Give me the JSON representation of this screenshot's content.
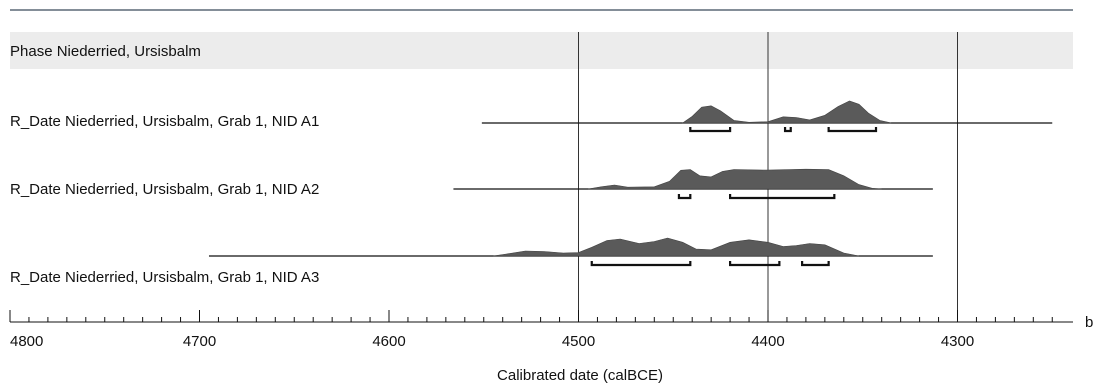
{
  "chart_data": {
    "type": "area",
    "title": "",
    "xlabel": "Calibrated date (calBCE)",
    "ylabel": "",
    "xlim": [
      4800,
      4250
    ],
    "x_ticks": [
      4800,
      4700,
      4600,
      4500,
      4400,
      4300
    ],
    "minor_tick_step": 10,
    "axis_end_label": "b",
    "vertical_gridlines": [
      4500,
      4400,
      4300
    ],
    "colors": {
      "density_fill": "#5a5a5a",
      "phase_band": "#ececec",
      "line": "#111111",
      "top_rule": "#3a4a5a"
    },
    "phase_label": "Phase Niederried, Ursisbalm",
    "series": [
      {
        "name": "R_Date Niederried, Ursisbalm, Grab 1, NID A1",
        "range": [
          4551,
          4250
        ],
        "density": [
          [
            4445,
            0
          ],
          [
            4440,
            0.3
          ],
          [
            4435,
            0.72
          ],
          [
            4430,
            0.78
          ],
          [
            4425,
            0.55
          ],
          [
            4418,
            0.12
          ],
          [
            4410,
            0.03
          ],
          [
            4400,
            0.06
          ],
          [
            4392,
            0.28
          ],
          [
            4385,
            0.25
          ],
          [
            4378,
            0.14
          ],
          [
            4370,
            0.35
          ],
          [
            4363,
            0.75
          ],
          [
            4357,
            1
          ],
          [
            4352,
            0.85
          ],
          [
            4347,
            0.45
          ],
          [
            4341,
            0.12
          ],
          [
            4335,
            0
          ]
        ],
        "hpd_ranges": [
          [
            4441,
            4420
          ],
          [
            4391,
            4388
          ],
          [
            4368,
            4343
          ]
        ]
      },
      {
        "name": "R_Date Niederried, Ursisbalm, Grab 1, NID A2",
        "range": [
          4566,
          4313
        ],
        "density": [
          [
            4495,
            0
          ],
          [
            4488,
            0.1
          ],
          [
            4481,
            0.18
          ],
          [
            4474,
            0.08
          ],
          [
            4460,
            0.1
          ],
          [
            4452,
            0.35
          ],
          [
            4446,
            0.85
          ],
          [
            4441,
            0.88
          ],
          [
            4436,
            0.6
          ],
          [
            4430,
            0.55
          ],
          [
            4424,
            0.8
          ],
          [
            4418,
            0.88
          ],
          [
            4400,
            0.86
          ],
          [
            4380,
            0.9
          ],
          [
            4368,
            0.88
          ],
          [
            4360,
            0.6
          ],
          [
            4352,
            0.2
          ],
          [
            4345,
            0.03
          ],
          [
            4340,
            0
          ]
        ],
        "hpd_ranges": [
          [
            4447,
            4441
          ],
          [
            4420,
            4365
          ]
        ]
      },
      {
        "name": "R_Date Niederried, Ursisbalm, Grab 1, NID A3",
        "range": [
          4695,
          4313
        ],
        "density": [
          [
            4545,
            0
          ],
          [
            4538,
            0.08
          ],
          [
            4528,
            0.2
          ],
          [
            4518,
            0.18
          ],
          [
            4508,
            0.12
          ],
          [
            4500,
            0.14
          ],
          [
            4493,
            0.35
          ],
          [
            4485,
            0.62
          ],
          [
            4478,
            0.68
          ],
          [
            4468,
            0.5
          ],
          [
            4460,
            0.58
          ],
          [
            4453,
            0.72
          ],
          [
            4445,
            0.55
          ],
          [
            4438,
            0.28
          ],
          [
            4430,
            0.25
          ],
          [
            4420,
            0.55
          ],
          [
            4410,
            0.65
          ],
          [
            4400,
            0.55
          ],
          [
            4392,
            0.38
          ],
          [
            4385,
            0.42
          ],
          [
            4378,
            0.5
          ],
          [
            4370,
            0.45
          ],
          [
            4360,
            0.12
          ],
          [
            4352,
            0
          ]
        ],
        "hpd_ranges": [
          [
            4493,
            4441
          ],
          [
            4420,
            4394
          ],
          [
            4382,
            4368
          ]
        ]
      }
    ]
  }
}
